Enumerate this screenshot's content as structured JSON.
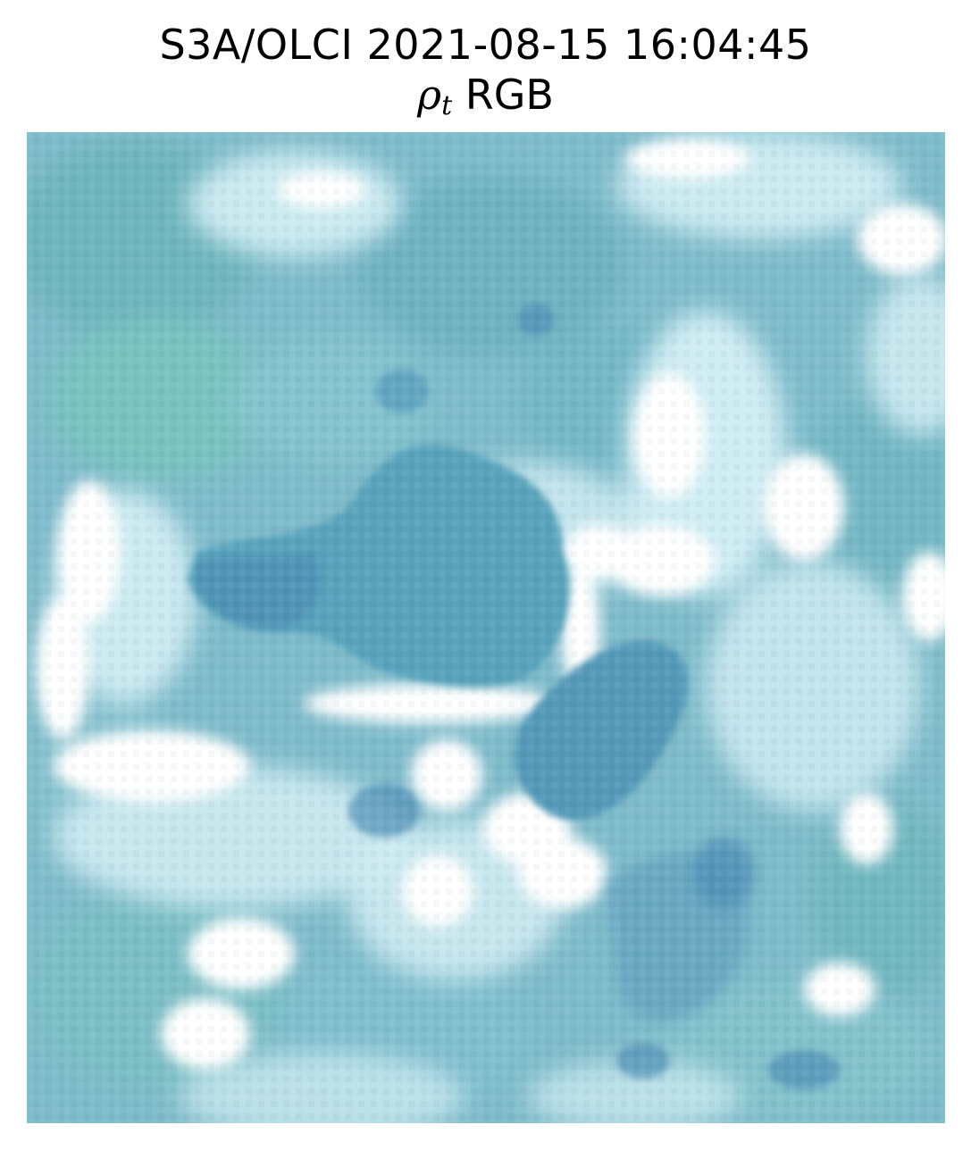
{
  "figure": {
    "title": "S3A/OLCI 2021-08-15 16:04:45",
    "subtitle_symbol": "ρ",
    "subtitle_subscript": "t",
    "subtitle_rest": " RGB"
  },
  "image": {
    "kind": "satellite-rgb-composite",
    "colors": {
      "base": "#7fbccb",
      "land_teal": "#6fb6bf",
      "land_green": "#79c3c0",
      "water_deep": "#4f8fb5",
      "water_mid": "#58a3bb",
      "cloud_light": "#d4eff5",
      "cloud_white": "#ffffff"
    }
  }
}
